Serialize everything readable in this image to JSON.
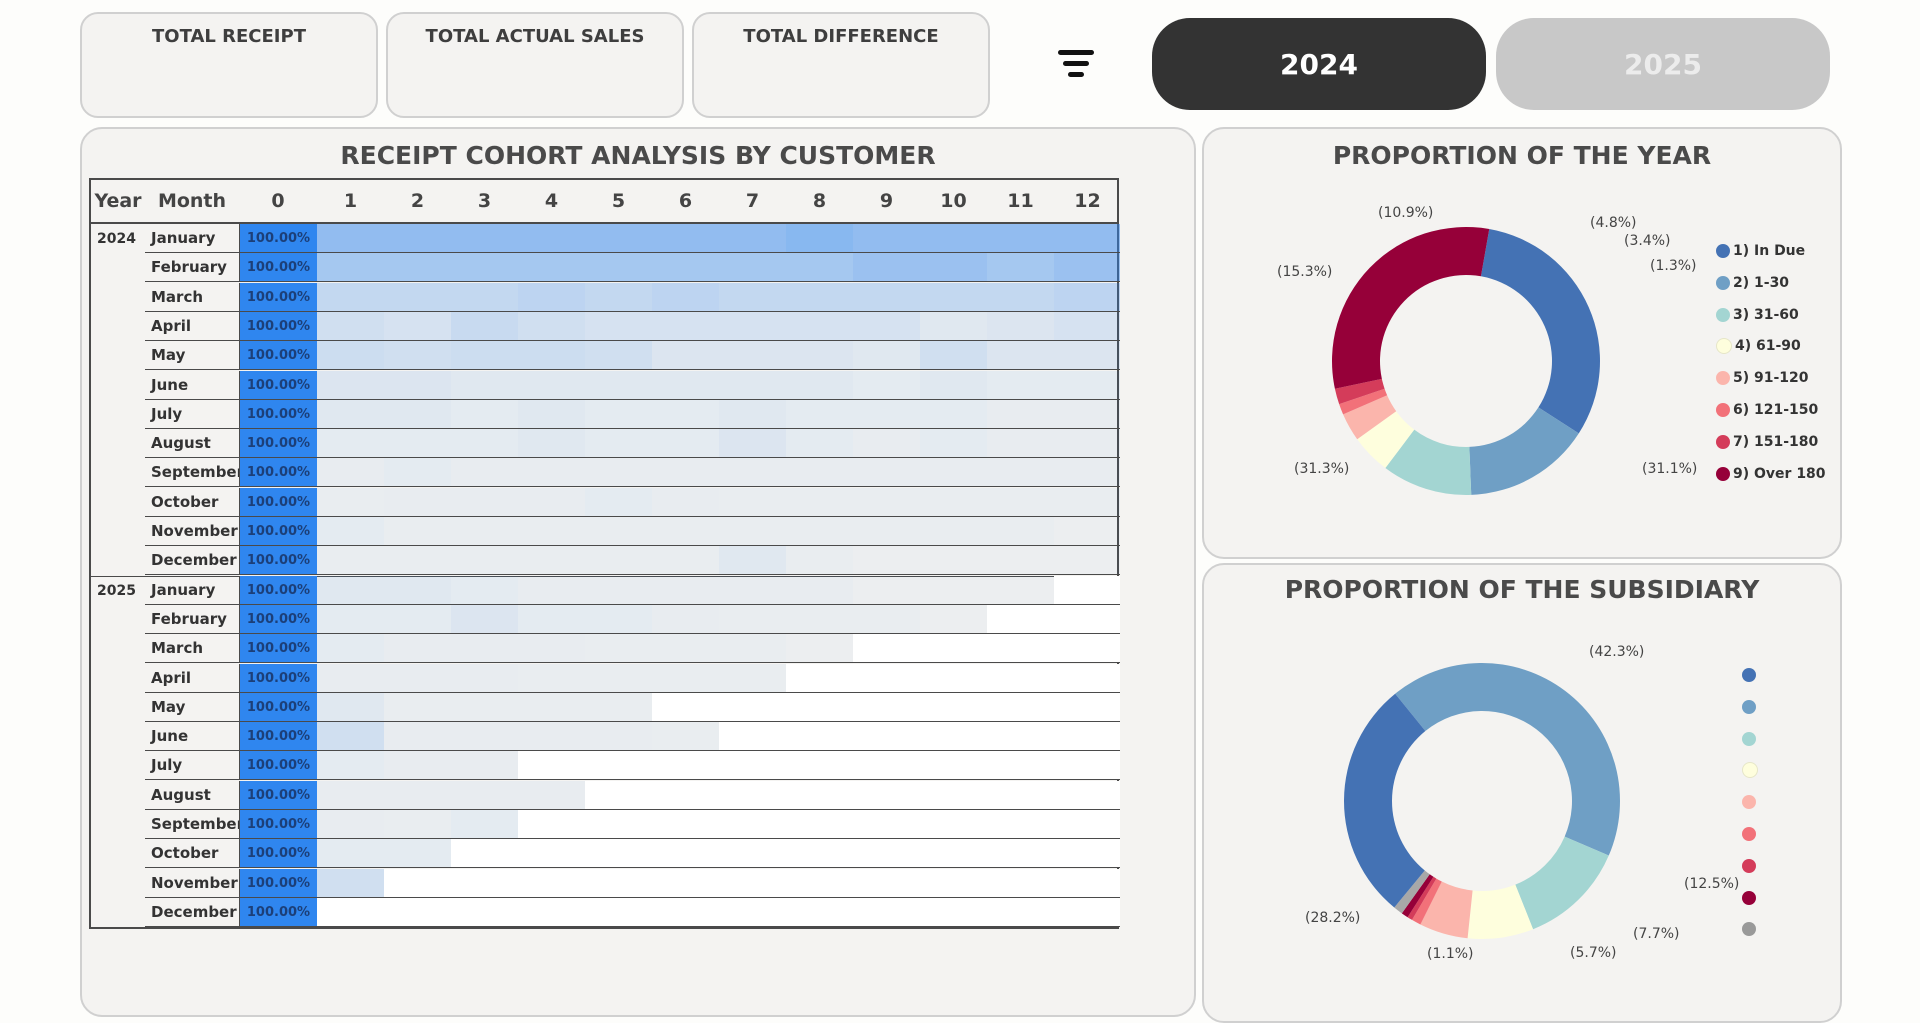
{
  "kpis": [
    {
      "title": "TOTAL RECEIPT",
      "value": ""
    },
    {
      "title": "TOTAL ACTUAL SALES",
      "value": ""
    },
    {
      "title": "TOTAL DIFFERENCE",
      "value": ""
    }
  ],
  "filter": {
    "icon": "filter-icon"
  },
  "year_buttons": [
    {
      "label": "2024",
      "active": true
    },
    {
      "label": "2025",
      "active": false
    }
  ],
  "cohort": {
    "title": "RECEIPT COHORT ANALYSIS BY CUSTOMER",
    "headers": {
      "year": "Year",
      "month": "Month",
      "periods": [
        "0",
        "1",
        "2",
        "3",
        "4",
        "5",
        "6",
        "7",
        "8",
        "9",
        "10",
        "11",
        "12"
      ]
    },
    "groups": [
      {
        "year": "2024",
        "months": [
          "January",
          "February",
          "March",
          "April",
          "May",
          "June",
          "July",
          "August",
          "September",
          "October",
          "November",
          "December"
        ]
      },
      {
        "year": "2025",
        "months": [
          "January",
          "February",
          "March",
          "April",
          "May",
          "June",
          "July",
          "August",
          "September",
          "October",
          "November",
          "December"
        ]
      }
    ],
    "period0_value": "100.00%",
    "heat_levels": [
      [
        0.5,
        0.5,
        0.5,
        0.5,
        0.5,
        0.5,
        0.5,
        0.55,
        0.5,
        0.5,
        0.5,
        0.5
      ],
      [
        0.4,
        0.4,
        0.4,
        0.4,
        0.4,
        0.4,
        0.4,
        0.4,
        0.45,
        0.45,
        0.4,
        0.45
      ],
      [
        0.25,
        0.25,
        0.25,
        0.28,
        0.25,
        0.28,
        0.25,
        0.25,
        0.25,
        0.25,
        0.25,
        0.28
      ],
      [
        0.18,
        0.15,
        0.22,
        0.18,
        0.15,
        0.15,
        0.15,
        0.15,
        0.15,
        0.1,
        0.12,
        0.15
      ],
      [
        0.2,
        0.18,
        0.2,
        0.2,
        0.18,
        0.12,
        0.12,
        0.12,
        0.1,
        0.18,
        0.12,
        0.12
      ],
      [
        0.12,
        0.12,
        0.1,
        0.1,
        0.1,
        0.1,
        0.1,
        0.1,
        0.08,
        0.1,
        0.08,
        0.08
      ],
      [
        0.1,
        0.1,
        0.08,
        0.1,
        0.08,
        0.08,
        0.1,
        0.08,
        0.08,
        0.08,
        0.06,
        0.06
      ],
      [
        0.08,
        0.08,
        0.08,
        0.1,
        0.08,
        0.08,
        0.12,
        0.08,
        0.06,
        0.08,
        0.06,
        0.06
      ],
      [
        0.06,
        0.08,
        0.06,
        0.06,
        0.06,
        0.06,
        0.06,
        0.06,
        0.06,
        0.06,
        0.06,
        0.06
      ],
      [
        0.05,
        0.06,
        0.06,
        0.06,
        0.08,
        0.06,
        0.05,
        0.05,
        0.05,
        0.05,
        0.05,
        0.05
      ],
      [
        0.08,
        0.05,
        0.05,
        0.05,
        0.05,
        0.05,
        0.05,
        0.05,
        0.05,
        0.05,
        0.05,
        0.04
      ],
      [
        0.05,
        0.05,
        0.05,
        0.05,
        0.05,
        0.05,
        0.1,
        0.05,
        0.04,
        0.04,
        0.04,
        0.04
      ],
      [
        0.1,
        0.1,
        0.08,
        0.06,
        0.06,
        0.06,
        0.06,
        0.06,
        0.04,
        0.04,
        0.04,
        0.0
      ],
      [
        0.08,
        0.08,
        0.12,
        0.08,
        0.08,
        0.06,
        0.05,
        0.05,
        0.05,
        0.04,
        0.0,
        0.0
      ],
      [
        0.08,
        0.06,
        0.06,
        0.06,
        0.05,
        0.05,
        0.05,
        0.04,
        0.0,
        0.0,
        0.0,
        0.0
      ],
      [
        0.06,
        0.06,
        0.06,
        0.05,
        0.05,
        0.05,
        0.05,
        0.0,
        0.0,
        0.0,
        0.0,
        0.0
      ],
      [
        0.1,
        0.05,
        0.05,
        0.05,
        0.05,
        0.0,
        0.0,
        0.0,
        0.0,
        0.0,
        0.0,
        0.0
      ],
      [
        0.18,
        0.06,
        0.06,
        0.06,
        0.06,
        0.05,
        0.0,
        0.0,
        0.0,
        0.0,
        0.0,
        0.0
      ],
      [
        0.08,
        0.06,
        0.06,
        0.0,
        0.0,
        0.0,
        0.0,
        0.0,
        0.0,
        0.0,
        0.0,
        0.0
      ],
      [
        0.06,
        0.06,
        0.06,
        0.06,
        0.0,
        0.0,
        0.0,
        0.0,
        0.0,
        0.0,
        0.0,
        0.0
      ],
      [
        0.06,
        0.05,
        0.08,
        0.0,
        0.0,
        0.0,
        0.0,
        0.0,
        0.0,
        0.0,
        0.0,
        0.0
      ],
      [
        0.08,
        0.08,
        0.0,
        0.0,
        0.0,
        0.0,
        0.0,
        0.0,
        0.0,
        0.0,
        0.0,
        0.0
      ],
      [
        0.18,
        0.0,
        0.0,
        0.0,
        0.0,
        0.0,
        0.0,
        0.0,
        0.0,
        0.0,
        0.0,
        0.0
      ],
      [
        0.0,
        0.0,
        0.0,
        0.0,
        0.0,
        0.0,
        0.0,
        0.0,
        0.0,
        0.0,
        0.0,
        0.0
      ]
    ],
    "colors": {
      "period0": "#2f86ef",
      "heat": "#2f86ef"
    }
  },
  "year_proportion": {
    "title": "PROPORTION OF THE YEAR",
    "legend": [
      "1) In Due",
      "2) 1-30",
      "3) 31-60",
      "4) 61-90",
      "5) 91-120",
      "6) 121-150",
      "7) 151-180",
      "9) Over 180"
    ],
    "labels": [
      "(31.3%)",
      "(15.3%)",
      "(10.9%)",
      "(4.8%)",
      "(3.4%)",
      "(1.3%)",
      "(31.1%)"
    ]
  },
  "subsidiary_proportion": {
    "title": "PROPORTION OF THE SUBSIDIARY",
    "labels": [
      "(42.3%)",
      "(12.5%)",
      "(7.7%)",
      "(5.7%)",
      "(1.1%)",
      "(28.2%)"
    ]
  },
  "chart_data": [
    {
      "type": "pie",
      "title": "PROPORTION OF THE YEAR",
      "categories": [
        "1) In Due",
        "2) 1-30",
        "3) 31-60",
        "4) 61-90",
        "5) 91-120",
        "6) 121-150",
        "7) 151-180",
        "9) Over 180"
      ],
      "values": [
        31.3,
        15.3,
        10.9,
        4.8,
        3.4,
        1.3,
        1.9,
        31.1
      ],
      "colors": [
        "#4472b4",
        "#6f9fc5",
        "#a3d5d2",
        "#fefedd",
        "#fbb5ac",
        "#f27179",
        "#d43c5a",
        "#960039"
      ],
      "legend": "right"
    },
    {
      "type": "pie",
      "title": "PROPORTION OF THE SUBSIDIARY",
      "values": [
        42.3,
        12.5,
        7.7,
        5.7,
        1.1,
        0.6,
        0.8,
        1.1,
        28.2
      ],
      "colors": [
        "#6f9fc5",
        "#a3d5d2",
        "#fefedd",
        "#fbb5ac",
        "#f27179",
        "#d43c5a",
        "#960039",
        "#a8a8a8",
        "#4472b4"
      ],
      "legend_colors": [
        "#4472b4",
        "#6f9fc5",
        "#a3d5d2",
        "#fefedd",
        "#fbb5ac",
        "#f27179",
        "#d43c5a",
        "#960039",
        "#999999"
      ],
      "legend": "right"
    }
  ]
}
